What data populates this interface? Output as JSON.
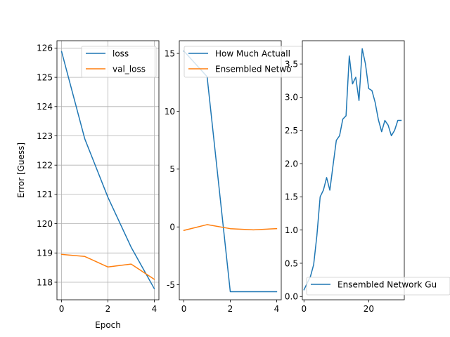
{
  "chart_data": [
    {
      "type": "line",
      "xlabel": "Epoch",
      "ylabel": "Error [Guess]",
      "xlim": [
        -0.2,
        4.2
      ],
      "ylim": [
        117.4,
        126.25
      ],
      "xticks": [
        0,
        2,
        4
      ],
      "yticks": [
        118,
        119,
        120,
        121,
        122,
        123,
        124,
        125,
        126
      ],
      "grid": true,
      "legend": "top-right",
      "series": [
        {
          "name": "loss",
          "color": "#1f77b4",
          "x": [
            0,
            1,
            2,
            3,
            4
          ],
          "y": [
            125.88,
            122.9,
            120.9,
            119.2,
            117.78
          ]
        },
        {
          "name": "val_loss",
          "color": "#ff7f0e",
          "x": [
            0,
            1,
            2,
            3,
            4
          ],
          "y": [
            118.95,
            118.88,
            118.52,
            118.62,
            118.1
          ]
        }
      ]
    },
    {
      "type": "line",
      "xlim": [
        -0.2,
        4.2
      ],
      "ylim": [
        -6.3,
        16.1
      ],
      "xticks": [
        0,
        2,
        4
      ],
      "yticks": [
        -5,
        0,
        5,
        10,
        15
      ],
      "grid": false,
      "legend": "top-right",
      "series": [
        {
          "name": "How Much Actuall",
          "color": "#1f77b4",
          "x": [
            0,
            1,
            2,
            3,
            4
          ],
          "y": [
            15.2,
            13.0,
            -5.6,
            -5.6,
            -5.6
          ]
        },
        {
          "name": "Ensembled Netwo",
          "color": "#ff7f0e",
          "x": [
            0,
            1,
            2,
            3,
            4
          ],
          "y": [
            -0.3,
            0.2,
            -0.15,
            -0.25,
            -0.15
          ]
        }
      ]
    },
    {
      "type": "line",
      "xlim": [
        -0.5,
        31
      ],
      "ylim": [
        -0.05,
        3.85
      ],
      "xticks": [
        0,
        20
      ],
      "yticks": [
        0.0,
        0.5,
        1.0,
        1.5,
        2.0,
        2.5,
        3.0,
        3.5
      ],
      "ytick_labels": [
        "0.0",
        "0.5",
        "1.0",
        "1.5",
        "2.0",
        "2.5",
        "3.0",
        "3.5"
      ],
      "grid": false,
      "legend": "bottom-right",
      "series": [
        {
          "name": "Ensembled Network Gu",
          "color": "#1f77b4",
          "x": [
            0,
            1,
            2,
            3,
            4,
            5,
            6,
            7,
            8,
            9,
            10,
            11,
            12,
            13,
            14,
            15,
            16,
            17,
            18,
            19,
            20,
            21,
            22,
            23,
            24,
            25,
            26,
            27,
            28,
            29,
            30
          ],
          "y": [
            0.1,
            0.2,
            0.3,
            0.48,
            0.92,
            1.5,
            1.6,
            1.79,
            1.6,
            1.98,
            2.35,
            2.42,
            2.67,
            2.72,
            3.62,
            3.2,
            3.3,
            2.95,
            3.73,
            3.5,
            3.13,
            3.1,
            2.92,
            2.66,
            2.48,
            2.65,
            2.58,
            2.42,
            2.5,
            2.65,
            2.65
          ]
        }
      ]
    }
  ]
}
